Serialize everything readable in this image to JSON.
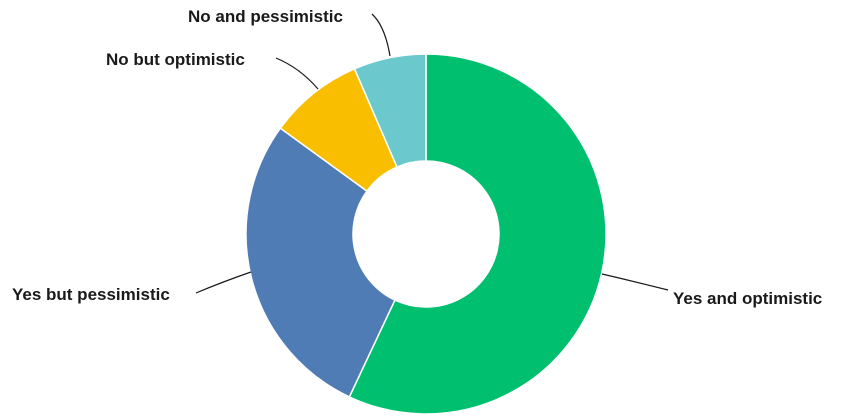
{
  "chart_data": {
    "type": "pie",
    "title": "",
    "categories": [
      "Yes and optimistic",
      "Yes but pessimistic",
      "No but optimistic",
      "No and pessimistic"
    ],
    "values": [
      57,
      28,
      8.5,
      6.5
    ],
    "colors": [
      "#00bf6f",
      "#507cb6",
      "#f9be00",
      "#6bc8cd"
    ],
    "legend": "none",
    "donut": true
  }
}
